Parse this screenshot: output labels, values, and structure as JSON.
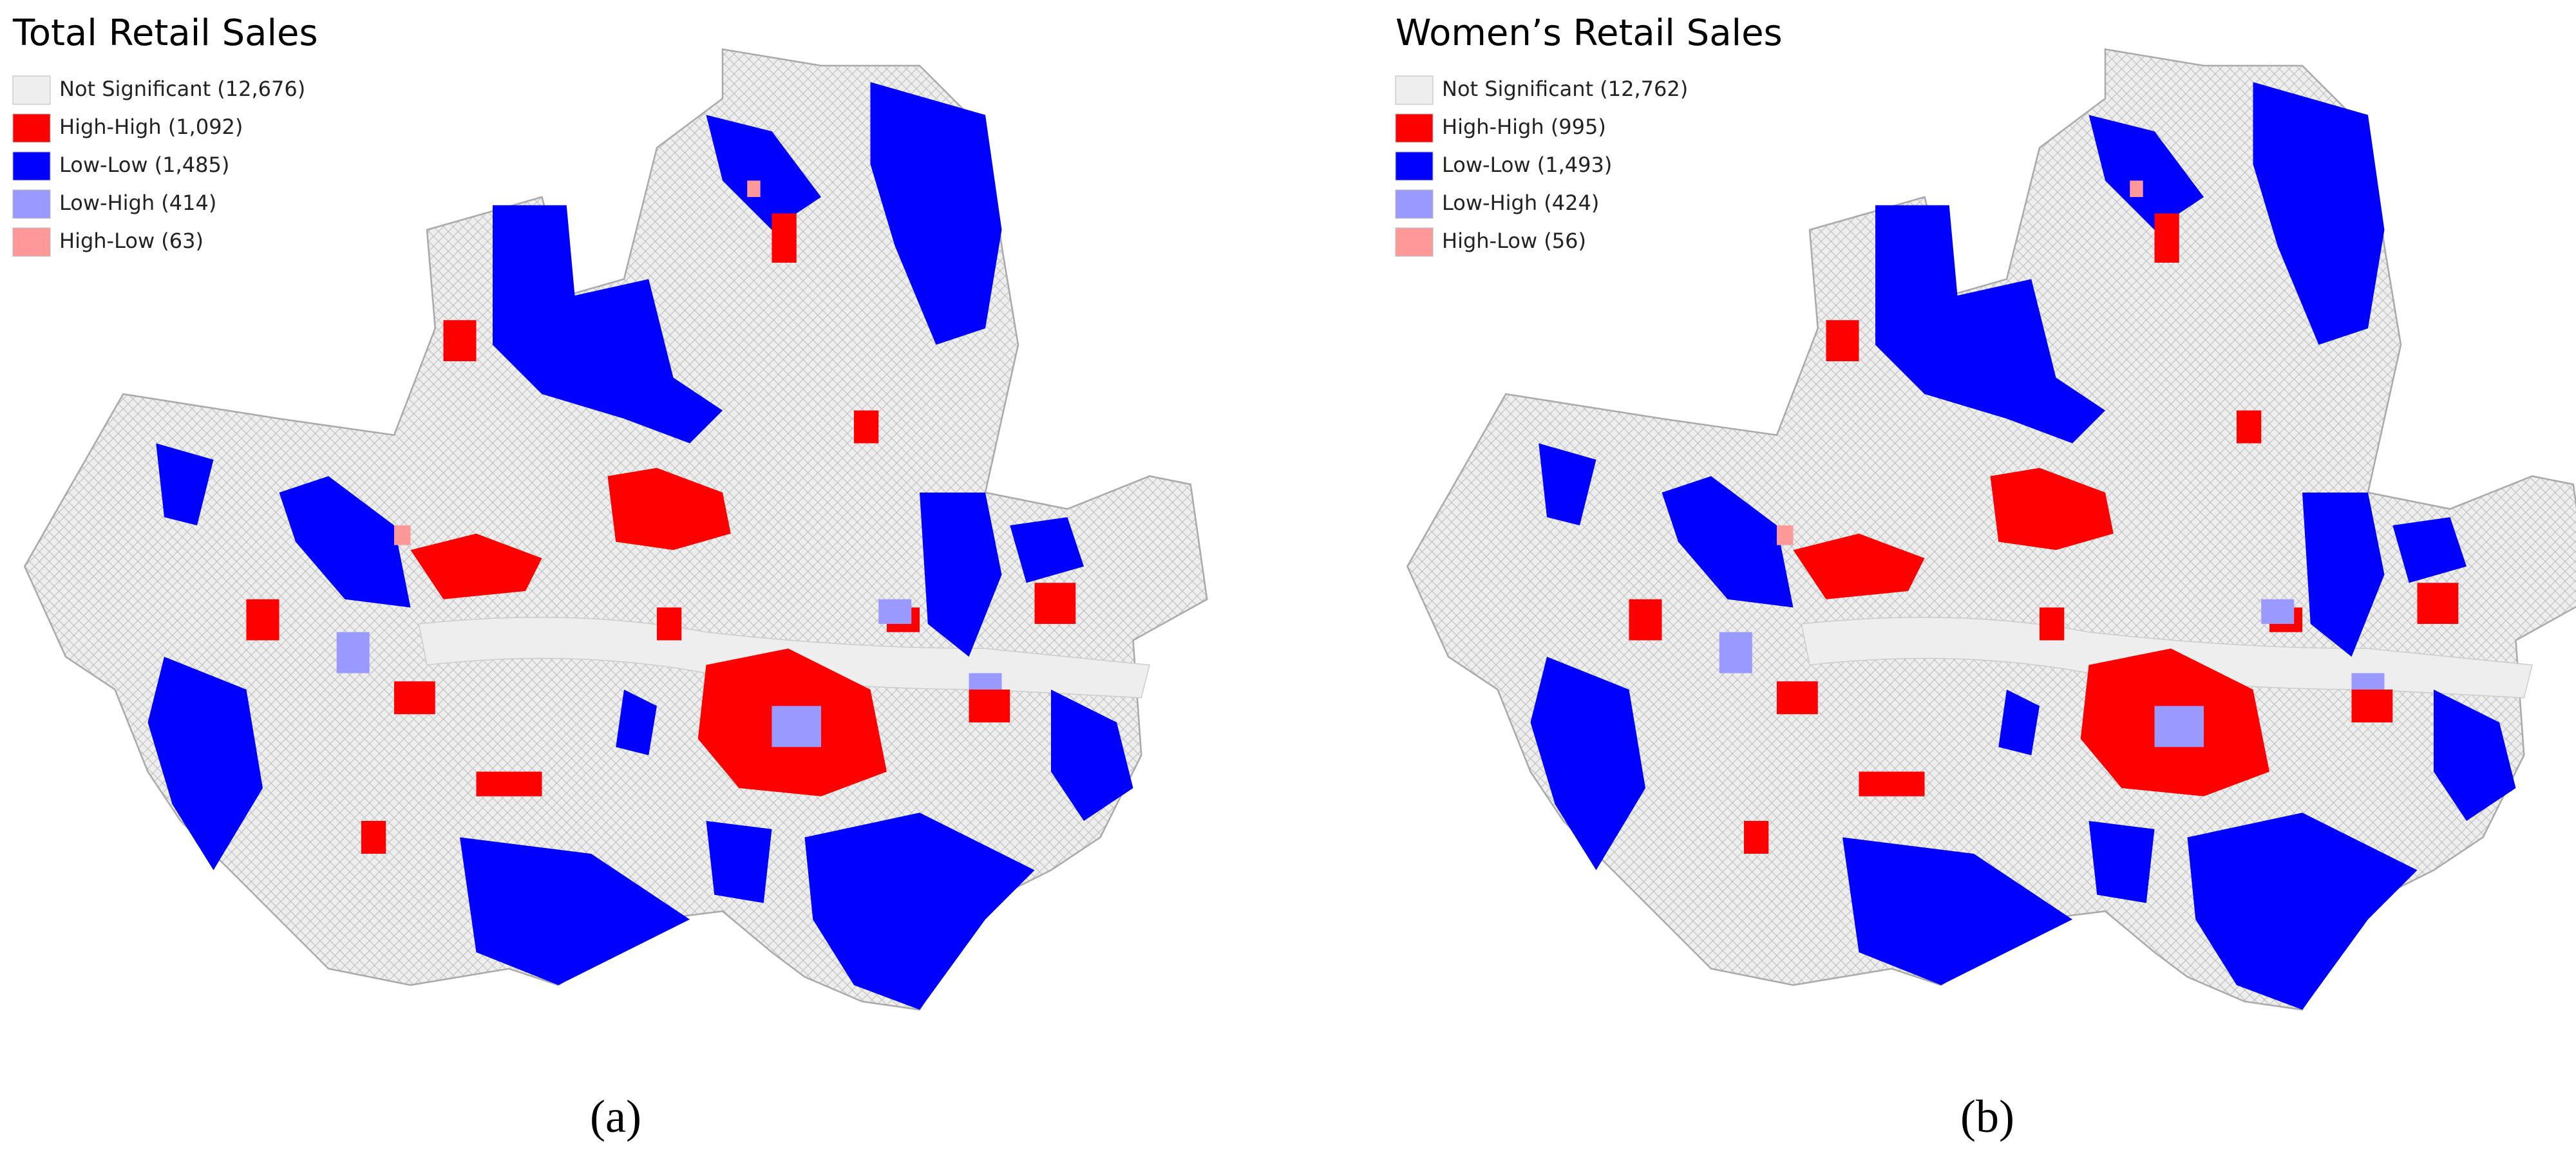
{
  "panels": [
    {
      "title": "Total Retail Sales",
      "caption": "(a)",
      "legend": [
        {
          "label": "Not Significant (12,676)",
          "color": "#eeeeee"
        },
        {
          "label": "High-High (1,092)",
          "color": "#ff0000"
        },
        {
          "label": "Low-Low (1,485)",
          "color": "#0000ff"
        },
        {
          "label": "Low-High (414)",
          "color": "#9999ff"
        },
        {
          "label": "High-Low (63)",
          "color": "#ff9999"
        }
      ]
    },
    {
      "title": "Women’s Retail Sales",
      "caption": "(b)",
      "legend": [
        {
          "label": "Not Significant (12,762)",
          "color": "#eeeeee"
        },
        {
          "label": "High-High (995)",
          "color": "#ff0000"
        },
        {
          "label": "Low-Low (1,493)",
          "color": "#0000ff"
        },
        {
          "label": "Low-High (424)",
          "color": "#9999ff"
        },
        {
          "label": "High-Low (56)",
          "color": "#ff9999"
        }
      ]
    }
  ]
}
